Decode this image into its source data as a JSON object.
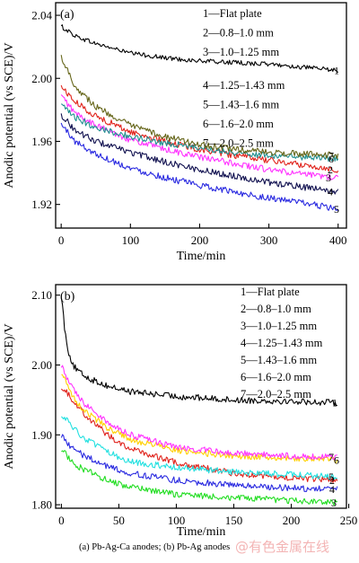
{
  "caption": "(a) Pb-Ag-Ca anodes; (b) Pb-Ag anodes",
  "watermark": "@有色金属在线",
  "chart_data": [
    {
      "type": "line",
      "panel_label": "(a)",
      "xlabel": "Time/min",
      "ylabel": "Anodic potential (vs SCE)/V",
      "xlim": [
        -8,
        412
      ],
      "ylim": [
        1.905,
        2.048
      ],
      "xticks": [
        0,
        100,
        200,
        300,
        400
      ],
      "yticks": [
        1.92,
        1.96,
        2.0,
        2.04
      ],
      "ytick_labels": [
        "1.92",
        "1.96",
        "2.00",
        "2.04"
      ],
      "grid": false,
      "legend_position": "top-right",
      "legend": [
        "1—Flat plate",
        "2—0.8–1.0 mm",
        "3—1.0–1.25 mm",
        "4—1.25–1.43 mm",
        "5—1.43–1.6 mm",
        "6—1.6–2.0 mm",
        "7—2.0–2.5 mm"
      ],
      "series": [
        {
          "name": "1",
          "color": "#000000",
          "x": [
            0,
            20,
            50,
            100,
            150,
            200,
            250,
            300,
            350,
            400
          ],
          "y": [
            2.033,
            2.027,
            2.022,
            2.016,
            2.013,
            2.011,
            2.01,
            2.009,
            2.007,
            2.005
          ]
        },
        {
          "name": "2",
          "color": "#e0231c",
          "x": [
            0,
            20,
            50,
            100,
            150,
            200,
            250,
            300,
            350,
            400
          ],
          "y": [
            1.995,
            1.985,
            1.976,
            1.966,
            1.96,
            1.955,
            1.951,
            1.948,
            1.945,
            1.942
          ]
        },
        {
          "name": "3",
          "color": "#ff33ff",
          "x": [
            0,
            20,
            50,
            100,
            150,
            200,
            250,
            300,
            350,
            400
          ],
          "y": [
            1.989,
            1.978,
            1.97,
            1.961,
            1.955,
            1.95,
            1.946,
            1.942,
            1.939,
            1.937
          ]
        },
        {
          "name": "4",
          "color": "#10104f",
          "x": [
            0,
            20,
            50,
            100,
            150,
            200,
            250,
            300,
            350,
            400
          ],
          "y": [
            1.977,
            1.967,
            1.96,
            1.953,
            1.947,
            1.942,
            1.938,
            1.934,
            1.931,
            1.928
          ]
        },
        {
          "name": "5",
          "color": "#2a2ae0",
          "x": [
            0,
            20,
            50,
            100,
            150,
            200,
            250,
            300,
            350,
            400
          ],
          "y": [
            1.971,
            1.96,
            1.952,
            1.943,
            1.937,
            1.932,
            1.928,
            1.924,
            1.921,
            1.917
          ]
        },
        {
          "name": "6",
          "color": "#1f8f8f",
          "x": [
            0,
            20,
            50,
            100,
            150,
            200,
            250,
            300,
            350,
            400
          ],
          "y": [
            1.983,
            1.975,
            1.969,
            1.963,
            1.959,
            1.956,
            1.953,
            1.951,
            1.95,
            1.949
          ]
        },
        {
          "name": "7",
          "color": "#66661a",
          "x": [
            0,
            20,
            50,
            100,
            150,
            200,
            250,
            300,
            350,
            400
          ],
          "y": [
            2.014,
            1.995,
            1.982,
            1.97,
            1.963,
            1.958,
            1.955,
            1.953,
            1.952,
            1.951
          ]
        }
      ]
    },
    {
      "type": "line",
      "panel_label": "(b)",
      "xlabel": "Time/min",
      "ylabel": "Anodic potential (vs SCE)/V",
      "xlim": [
        -5,
        248
      ],
      "ylim": [
        1.795,
        2.115
      ],
      "xticks": [
        0,
        50,
        100,
        150,
        200,
        250
      ],
      "yticks": [
        1.8,
        1.9,
        2.0,
        2.1
      ],
      "ytick_labels": [
        "1.80",
        "1.90",
        "2.00",
        "2.10"
      ],
      "grid": false,
      "legend_position": "top-right",
      "legend": [
        "1—Flat plate",
        "2—0.8–1.0 mm",
        "3—1.0–1.25 mm",
        "4—1.25–1.43 mm",
        "5—1.43–1.6 mm",
        "6—1.6–2.0 mm",
        "7—2.0–2.5 mm"
      ],
      "series": [
        {
          "name": "1",
          "color": "#000000",
          "x": [
            0,
            3,
            6,
            10,
            15,
            25,
            40,
            60,
            100,
            150,
            200,
            240
          ],
          "y": [
            2.1,
            2.05,
            2.02,
            2.0,
            1.99,
            1.98,
            1.97,
            1.962,
            1.955,
            1.95,
            1.948,
            1.946
          ]
        },
        {
          "name": "2",
          "color": "#e0231c",
          "x": [
            0,
            5,
            10,
            20,
            40,
            60,
            100,
            150,
            200,
            240
          ],
          "y": [
            1.97,
            1.96,
            1.95,
            1.93,
            1.9,
            1.88,
            1.86,
            1.845,
            1.838,
            1.835
          ]
        },
        {
          "name": "3",
          "color": "#22dd22",
          "x": [
            0,
            5,
            10,
            20,
            40,
            60,
            100,
            150,
            200,
            240
          ],
          "y": [
            1.88,
            1.87,
            1.86,
            1.85,
            1.835,
            1.825,
            1.815,
            1.81,
            1.806,
            1.803
          ]
        },
        {
          "name": "4",
          "color": "#2a2ae0",
          "x": [
            0,
            5,
            10,
            20,
            40,
            60,
            100,
            150,
            200,
            240
          ],
          "y": [
            1.9,
            1.89,
            1.88,
            1.87,
            1.855,
            1.845,
            1.835,
            1.828,
            1.824,
            1.822
          ]
        },
        {
          "name": "5",
          "color": "#22e0e0",
          "x": [
            0,
            5,
            10,
            20,
            40,
            60,
            100,
            150,
            200,
            240
          ],
          "y": [
            1.93,
            1.92,
            1.91,
            1.895,
            1.875,
            1.862,
            1.853,
            1.847,
            1.843,
            1.84
          ]
        },
        {
          "name": "6",
          "color": "#ffd000",
          "x": [
            0,
            5,
            10,
            20,
            40,
            60,
            100,
            150,
            200,
            240
          ],
          "y": [
            1.99,
            1.97,
            1.955,
            1.935,
            1.91,
            1.893,
            1.878,
            1.87,
            1.866,
            1.864
          ]
        },
        {
          "name": "7",
          "color": "#ff33ff",
          "x": [
            0,
            5,
            10,
            20,
            40,
            60,
            100,
            150,
            200,
            240
          ],
          "y": [
            2.0,
            1.98,
            1.965,
            1.945,
            1.918,
            1.9,
            1.882,
            1.874,
            1.87,
            1.868
          ]
        }
      ]
    }
  ]
}
